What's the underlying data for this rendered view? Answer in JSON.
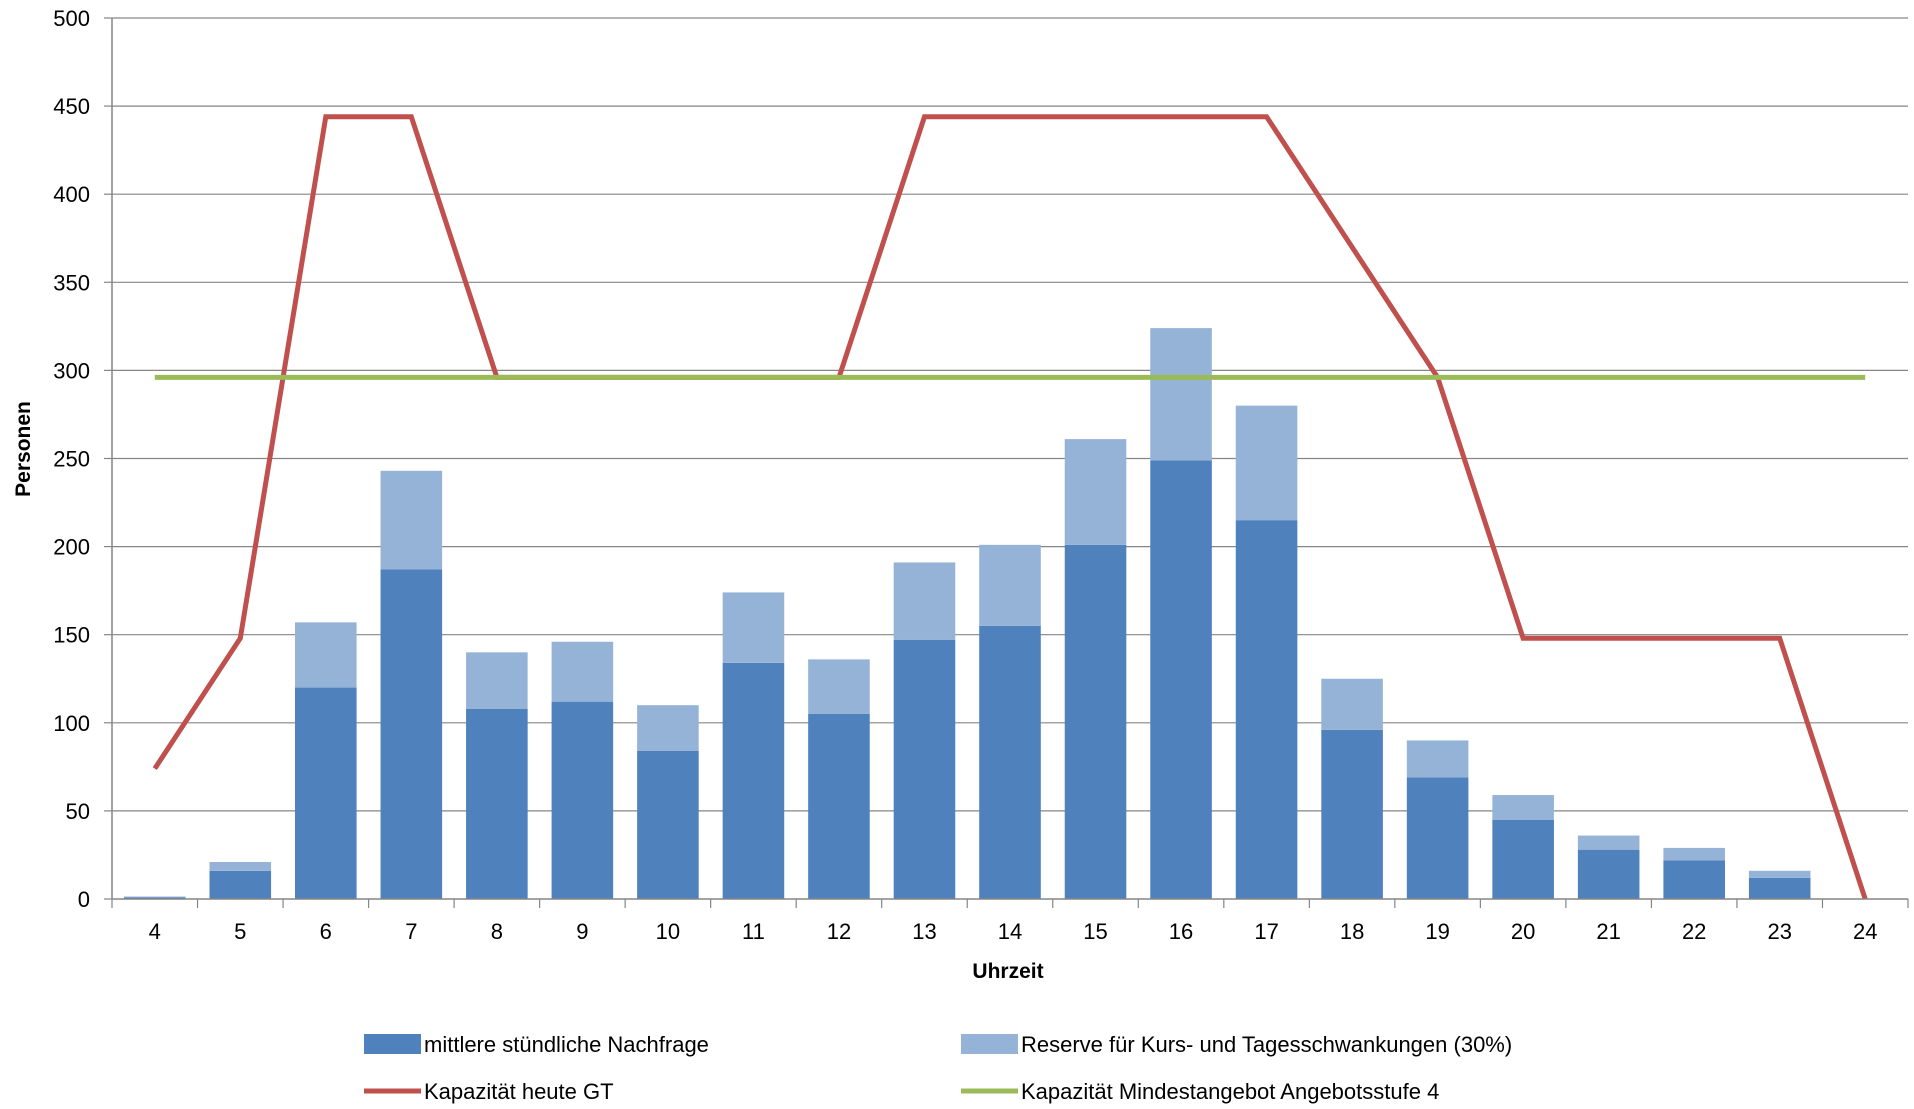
{
  "chart_data": {
    "type": "bar",
    "stacked": true,
    "xlabel": "Uhrzeit",
    "ylabel": "Personen",
    "ylim": [
      0,
      500
    ],
    "yticks": [
      0,
      50,
      100,
      150,
      200,
      250,
      300,
      350,
      400,
      450,
      500
    ],
    "grid": "horizontal",
    "legend_position": "bottom",
    "categories": [
      "4",
      "5",
      "6",
      "7",
      "8",
      "9",
      "10",
      "11",
      "12",
      "13",
      "14",
      "15",
      "16",
      "17",
      "18",
      "19",
      "20",
      "21",
      "22",
      "23",
      "24"
    ],
    "bar_series": [
      {
        "name": "mittlere stündliche Nachfrage",
        "color": "#4F81BD",
        "values": [
          1,
          16,
          120,
          187,
          108,
          112,
          84,
          134,
          105,
          147,
          155,
          201,
          249,
          215,
          96,
          69,
          45,
          28,
          22,
          12,
          0
        ]
      },
      {
        "name": "Reserve für Kurs- und Tagesschwankungen (30%)",
        "color": "#95B3D7",
        "values": [
          0.4,
          5,
          37,
          56,
          32,
          34,
          26,
          40,
          31,
          44,
          46,
          60,
          75,
          65,
          29,
          21,
          14,
          8,
          7,
          4,
          0
        ]
      }
    ],
    "line_series": [
      {
        "name": "Kapazität heute GT",
        "color": "#C0504D",
        "values": [
          74,
          148,
          444,
          444,
          296,
          296,
          296,
          296,
          296,
          444,
          444,
          444,
          444,
          444,
          370,
          296,
          148,
          148,
          148,
          148,
          0
        ]
      },
      {
        "name": "Kapazität Mindestangebot Angebotsstufe 4",
        "color": "#9BBB59",
        "values": [
          296,
          296,
          296,
          296,
          296,
          296,
          296,
          296,
          296,
          296,
          296,
          296,
          296,
          296,
          296,
          296,
          296,
          296,
          296,
          296,
          296
        ]
      }
    ]
  }
}
